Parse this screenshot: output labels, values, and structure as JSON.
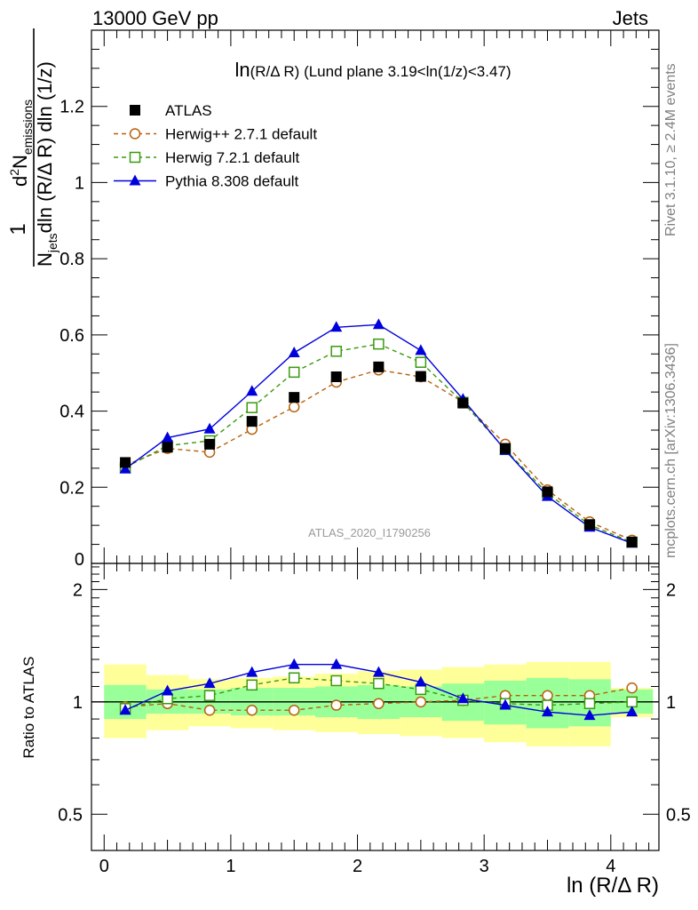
{
  "header": {
    "left": "13000 GeV pp",
    "right": "Jets"
  },
  "side_labels": {
    "rivet": "Rivet 3.1.10, ≥ 2.4M events",
    "mcplots": "mcplots.cern.ch [arXiv:1306.3436]"
  },
  "chart_data": [
    {
      "type": "line",
      "title": "ln(R/Δ R) (Lund plane 3.19<ln(1/z)<3.47)",
      "watermark": "ATLAS_2020_I1790256",
      "ylabel": {
        "one": "1",
        "denom_main": "N",
        "denom_sub": "jets",
        "denom_rest": "dln (R/Δ R) dln (1/z)",
        "num_main": "d",
        "num_sup": "2",
        "num_rest": "N",
        "num_sub": "emissions"
      },
      "xlim": [
        -0.1,
        4.38
      ],
      "ylim": [
        0,
        1.4
      ],
      "yticks": [
        0.2,
        0.4,
        0.6,
        0.8,
        1,
        1.2
      ],
      "ytick_labels": [
        "0.2",
        "0.4",
        "0.6",
        "0.8",
        "1",
        "1.2"
      ],
      "y_zero_label": "0",
      "legend_position": "top-left",
      "x": [
        0.167,
        0.5,
        0.833,
        1.167,
        1.5,
        1.833,
        2.167,
        2.5,
        2.833,
        3.167,
        3.5,
        3.833,
        4.167
      ],
      "series": [
        {
          "name": "ATLAS",
          "marker": "square-filled",
          "color": "#000000",
          "line": "none",
          "values": [
            0.265,
            0.305,
            0.313,
            0.373,
            0.436,
            0.49,
            0.516,
            0.491,
            0.421,
            0.302,
            0.188,
            0.102,
            0.056
          ]
        },
        {
          "name": "Herwig++ 2.7.1 default",
          "marker": "circle-open",
          "color": "#b8600e",
          "line": "dashed",
          "values": [
            0.258,
            0.302,
            0.292,
            0.352,
            0.411,
            0.476,
            0.508,
            0.49,
            0.424,
            0.313,
            0.193,
            0.109,
            0.061
          ]
        },
        {
          "name": "Herwig 7.2.1 default",
          "marker": "square-open",
          "color": "#3a9a0e",
          "line": "dashed",
          "values": [
            0.252,
            0.309,
            0.322,
            0.409,
            0.502,
            0.557,
            0.576,
            0.528,
            0.423,
            0.299,
            0.184,
            0.101,
            0.056
          ]
        },
        {
          "name": "Pythia 8.308 default",
          "marker": "triangle-filled",
          "color": "#0000dd",
          "line": "solid",
          "values": [
            0.248,
            0.33,
            0.353,
            0.452,
            0.553,
            0.62,
            0.627,
            0.559,
            0.431,
            0.297,
            0.176,
            0.095,
            0.053
          ]
        }
      ]
    },
    {
      "type": "line",
      "ylabel": "Ratio to ATLAS",
      "xlabel": "ln (R/Δ R)",
      "log_y": true,
      "ylim": [
        0.4,
        2.35
      ],
      "xlim": [
        -0.1,
        4.38
      ],
      "yticks": [
        0.5,
        1,
        2
      ],
      "ytick_labels": [
        "0.5",
        "1",
        "2"
      ],
      "xticks": [
        0,
        1,
        2,
        3,
        4
      ],
      "xtick_labels": [
        "0",
        "1",
        "2",
        "3",
        "4"
      ],
      "x": [
        0.167,
        0.5,
        0.833,
        1.167,
        1.5,
        1.833,
        2.167,
        2.5,
        2.833,
        3.167,
        3.5,
        3.833,
        4.167
      ],
      "bin_edges": [
        0.0,
        0.333,
        0.667,
        1.0,
        1.333,
        1.667,
        2.0,
        2.333,
        2.667,
        3.0,
        3.333,
        3.667,
        4.0,
        4.333
      ],
      "band_stat": {
        "low": [
          0.9,
          0.93,
          0.93,
          0.92,
          0.92,
          0.91,
          0.9,
          0.91,
          0.89,
          0.87,
          0.85,
          0.86,
          0.93
        ],
        "high": [
          1.11,
          1.08,
          1.08,
          1.09,
          1.09,
          1.1,
          1.11,
          1.1,
          1.12,
          1.14,
          1.16,
          1.15,
          1.08
        ]
      },
      "band_total": {
        "low": [
          0.8,
          0.84,
          0.86,
          0.85,
          0.84,
          0.83,
          0.82,
          0.81,
          0.8,
          0.78,
          0.76,
          0.76,
          0.91
        ],
        "high": [
          1.26,
          1.18,
          1.15,
          1.16,
          1.17,
          1.19,
          1.21,
          1.22,
          1.24,
          1.26,
          1.28,
          1.28,
          1.09
        ]
      },
      "series": [
        {
          "name": "Herwig++ 2.7.1 default",
          "color": "#b8600e",
          "marker": "circle-open",
          "line": "dashed",
          "values": [
            0.97,
            0.99,
            0.95,
            0.95,
            0.95,
            0.98,
            0.99,
            1.0,
            1.01,
            1.04,
            1.04,
            1.04,
            1.09
          ]
        },
        {
          "name": "Herwig 7.2.1 default",
          "color": "#3a9a0e",
          "marker": "square-open",
          "line": "dashed",
          "values": [
            0.96,
            1.02,
            1.04,
            1.11,
            1.16,
            1.14,
            1.12,
            1.08,
            1.01,
            0.99,
            0.98,
            0.99,
            1.0
          ]
        },
        {
          "name": "Pythia 8.308 default",
          "color": "#0000dd",
          "marker": "triangle-filled",
          "line": "solid",
          "values": [
            0.95,
            1.07,
            1.12,
            1.2,
            1.26,
            1.26,
            1.2,
            1.13,
            1.02,
            0.98,
            0.94,
            0.92,
            0.94
          ]
        }
      ]
    }
  ]
}
